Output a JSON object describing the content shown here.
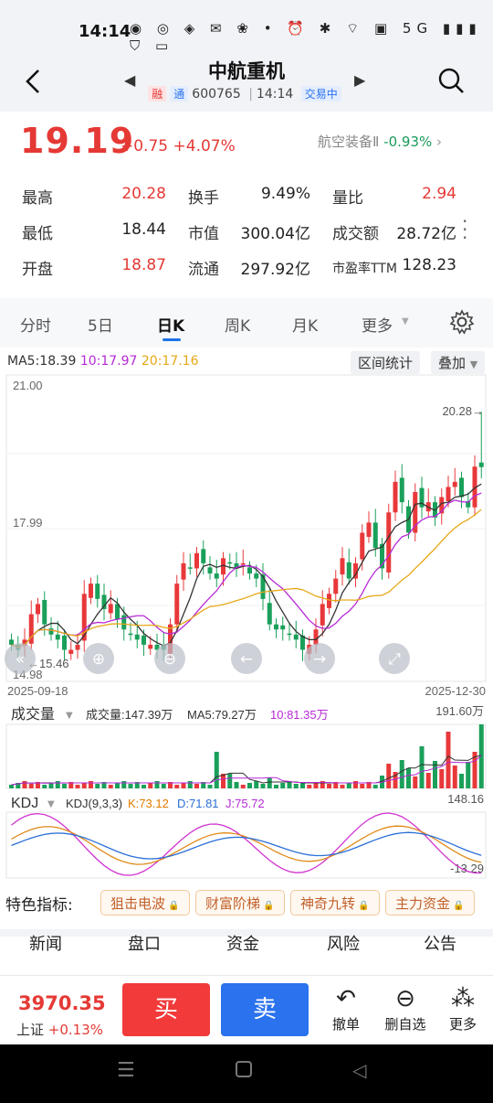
{
  "status": {
    "time": "14:14",
    "icons_text": "◉ ◎ ◈ ✉ ❀ •  ⏰ ✱ ⌔ ▣ 5G ▮▮▮ ⛉ ▭"
  },
  "header": {
    "title": "中航重机",
    "tag_rong": "融",
    "tag_tong": "通",
    "code": "600765",
    "time": "14:14",
    "state": "交易中"
  },
  "quote": {
    "price": "19.19",
    "change": "+0.75",
    "change_pct": "+4.07%",
    "sector_name": "航空装备Ⅱ",
    "sector_chg": "-0.93%",
    "rows": [
      [
        {
          "l": "最高",
          "v": "20.28",
          "c": "red"
        },
        {
          "l": "换手",
          "v": "9.49%",
          "c": "dark"
        },
        {
          "l": "量比",
          "v": "2.94",
          "c": "red"
        }
      ],
      [
        {
          "l": "最低",
          "v": "18.44",
          "c": "dark"
        },
        {
          "l": "市值",
          "v": "300.04亿",
          "c": "dark"
        },
        {
          "l": "成交额",
          "v": "28.72亿",
          "c": "dark"
        }
      ],
      [
        {
          "l": "开盘",
          "v": "18.87",
          "c": "red"
        },
        {
          "l": "流通",
          "v": "297.92亿",
          "c": "dark"
        },
        {
          "l": "市盈率TTM",
          "v": "128.23",
          "c": "dark"
        }
      ]
    ]
  },
  "tabs": [
    "分时",
    "5日",
    "日K",
    "周K",
    "月K",
    "更多"
  ],
  "chart": {
    "ma5": "MA5:18.39",
    "ma10": "10:17.97",
    "ma20": "20:17.16",
    "btn_stats": "区间统计",
    "btn_overlay": "叠加",
    "y_top": "21.00",
    "y_mid": "17.99",
    "y_bottom": "14.98",
    "high_label": "20.28→",
    "low_label": "←15.46",
    "date_start": "2025-09-18",
    "date_end": "2025-12-30",
    "vol_title": "成交量",
    "vol_val": "成交量:147.39万",
    "vol_ma5": "MA5:79.27万",
    "vol_ma10": "10:81.35万",
    "vol_max": "191.60万",
    "kdj_title": "KDJ",
    "kdj_params": "KDJ(9,3,3)",
    "kdj_k": "K:73.12",
    "kdj_d": "D:71.81",
    "kdj_j": "J:75.72",
    "kdj_top": "148.16",
    "kdj_bottom": "-13.29",
    "colors": {
      "up": "#e8383a",
      "down": "#1aa05a",
      "ma5": "#333333",
      "ma10": "#b62ad6",
      "ma20": "#e6a817"
    }
  },
  "features": {
    "label": "特色指标:",
    "chips": [
      "狙击电波",
      "财富阶梯",
      "神奇九转",
      "主力资金"
    ]
  },
  "news_tabs": [
    "新闻",
    "盘口",
    "资金",
    "风险",
    "公告"
  ],
  "bottom": {
    "index_value": "3970.35",
    "index_name": "上证",
    "index_chg": "+0.13%",
    "buy": "买",
    "sell": "卖",
    "actions": [
      {
        "label": "撤单",
        "icon": "↶"
      },
      {
        "label": "删自选",
        "icon": "⊖"
      },
      {
        "label": "更多",
        "icon": "⁂"
      }
    ]
  }
}
